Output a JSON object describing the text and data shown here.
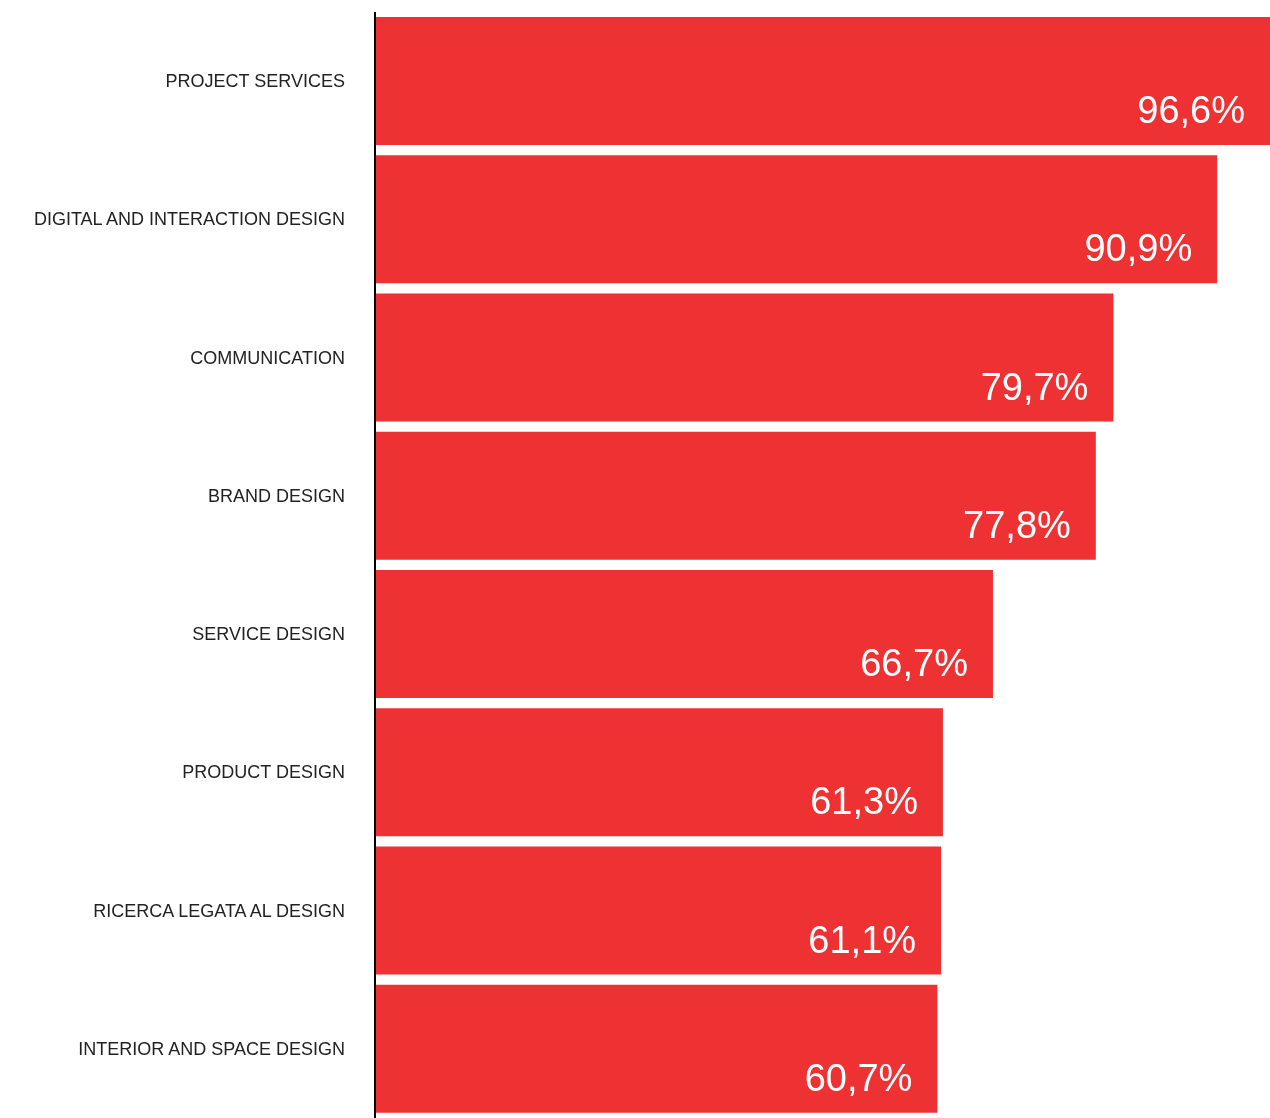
{
  "chart_data": {
    "type": "bar",
    "orientation": "horizontal",
    "categories": [
      "PROJECT SERVICES",
      "DIGITAL AND INTERACTION DESIGN",
      "COMMUNICATION",
      "BRAND DESIGN",
      "SERVICE DESIGN",
      "PRODUCT DESIGN",
      "RICERCA LEGATA AL DESIGN",
      "INTERIOR AND SPACE DESIGN"
    ],
    "values": [
      96.6,
      90.9,
      79.7,
      77.8,
      66.7,
      61.3,
      61.1,
      60.7
    ],
    "value_labels": [
      "96,6%",
      "90,9%",
      "79,7%",
      "77,8%",
      "66,7%",
      "61,3%",
      "61,1%",
      "60,7%"
    ],
    "color": "#ee3233",
    "grid": false,
    "legend": false
  }
}
